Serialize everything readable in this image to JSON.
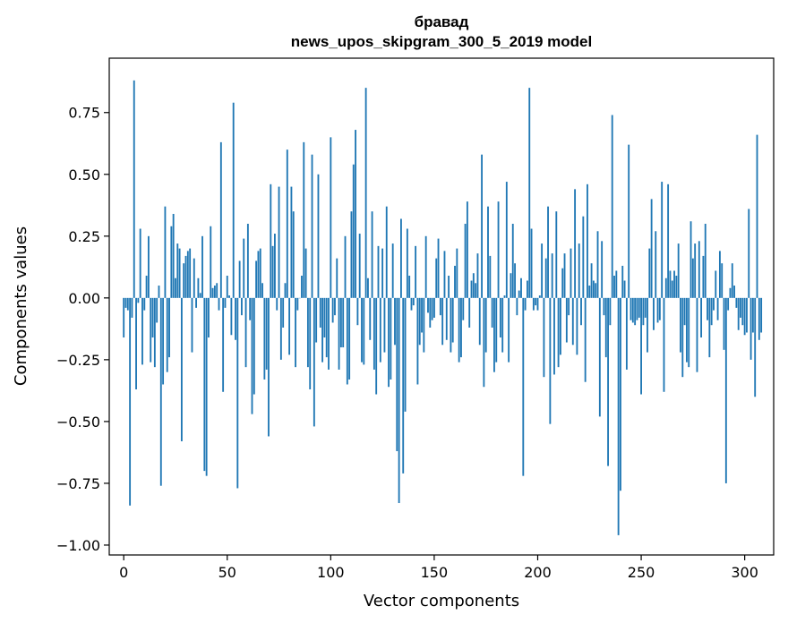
{
  "chart_data": {
    "type": "bar",
    "title": [
      "бравад",
      "news_upos_skipgram_300_5_2019 model"
    ],
    "xlabel": "Vector components",
    "ylabel": "Components values",
    "xlim": [
      -7,
      314
    ],
    "ylim": [
      -1.04,
      0.97
    ],
    "xticks": [
      0,
      50,
      100,
      150,
      200,
      250,
      300
    ],
    "xtick_labels": [
      "0",
      "50",
      "100",
      "150",
      "200",
      "250",
      "300"
    ],
    "yticks": [
      -1.0,
      -0.75,
      -0.5,
      -0.25,
      0.0,
      0.25,
      0.5,
      0.75
    ],
    "ytick_labels": [
      "−1.00",
      "−0.75",
      "−0.50",
      "−0.25",
      "0.00",
      "0.25",
      "0.50",
      "0.75"
    ],
    "bar_color": "#1f77b4",
    "grid": false,
    "x_start": 0,
    "values": [
      -0.16,
      -0.04,
      -0.05,
      -0.84,
      -0.08,
      0.88,
      -0.37,
      -0.02,
      0.28,
      -0.27,
      -0.05,
      0.09,
      0.25,
      -0.26,
      -0.16,
      -0.28,
      -0.1,
      0.05,
      -0.76,
      -0.35,
      0.37,
      -0.3,
      -0.24,
      0.29,
      0.34,
      0.08,
      0.22,
      0.2,
      -0.58,
      0.14,
      0.17,
      0.19,
      0.2,
      -0.22,
      0.16,
      -0.04,
      0.08,
      0.02,
      0.25,
      -0.7,
      -0.72,
      -0.16,
      0.29,
      0.04,
      0.05,
      0.06,
      -0.05,
      0.63,
      -0.38,
      -0.04,
      0.09,
      0.01,
      -0.15,
      0.79,
      -0.17,
      -0.77,
      0.15,
      -0.07,
      0.24,
      -0.28,
      0.3,
      -0.09,
      -0.47,
      -0.39,
      0.15,
      0.19,
      0.2,
      0.06,
      -0.33,
      -0.29,
      -0.56,
      0.46,
      0.21,
      0.26,
      -0.05,
      0.45,
      -0.25,
      -0.12,
      0.06,
      0.6,
      -0.23,
      0.45,
      0.35,
      -0.28,
      -0.05,
      0.0,
      0.09,
      0.63,
      0.2,
      -0.28,
      -0.37,
      0.58,
      -0.52,
      -0.18,
      0.5,
      -0.12,
      -0.26,
      -0.16,
      -0.24,
      -0.29,
      0.65,
      -0.1,
      -0.07,
      0.16,
      -0.29,
      -0.2,
      -0.2,
      0.25,
      -0.35,
      -0.33,
      0.35,
      0.54,
      0.68,
      -0.11,
      0.26,
      -0.26,
      -0.27,
      0.85,
      0.08,
      -0.17,
      0.35,
      -0.29,
      -0.39,
      0.21,
      -0.26,
      0.2,
      -0.22,
      0.37,
      -0.36,
      -0.33,
      0.22,
      -0.19,
      -0.62,
      -0.83,
      0.32,
      -0.71,
      -0.46,
      0.28,
      0.09,
      -0.05,
      -0.03,
      0.21,
      -0.35,
      -0.19,
      -0.14,
      -0.22,
      0.25,
      -0.06,
      -0.12,
      -0.09,
      -0.08,
      0.16,
      0.24,
      -0.07,
      -0.19,
      0.19,
      -0.17,
      0.09,
      -0.22,
      -0.18,
      0.13,
      0.2,
      -0.26,
      -0.24,
      -0.09,
      0.3,
      0.39,
      -0.12,
      0.07,
      0.1,
      0.06,
      0.18,
      -0.19,
      0.58,
      -0.36,
      -0.22,
      0.37,
      0.17,
      -0.12,
      -0.3,
      -0.26,
      0.39,
      -0.16,
      -0.22,
      0.01,
      0.47,
      -0.26,
      0.1,
      0.3,
      0.14,
      -0.07,
      0.03,
      0.08,
      -0.72,
      -0.05,
      0.07,
      0.85,
      0.28,
      -0.05,
      -0.03,
      -0.05,
      0.01,
      0.22,
      -0.32,
      0.16,
      0.37,
      -0.51,
      0.18,
      -0.31,
      0.35,
      -0.28,
      -0.23,
      0.12,
      0.18,
      -0.18,
      -0.07,
      0.2,
      -0.19,
      0.44,
      -0.23,
      0.22,
      -0.11,
      0.33,
      -0.34,
      0.46,
      0.05,
      0.14,
      0.07,
      0.06,
      0.27,
      -0.48,
      0.23,
      -0.07,
      -0.24,
      -0.68,
      -0.11,
      0.74,
      0.09,
      0.11,
      -0.96,
      -0.78,
      0.13,
      0.07,
      -0.29,
      0.62,
      -0.09,
      -0.1,
      -0.11,
      -0.09,
      -0.08,
      -0.39,
      -0.11,
      -0.08,
      -0.22,
      0.2,
      0.4,
      -0.13,
      0.27,
      -0.1,
      -0.09,
      0.47,
      -0.38,
      0.08,
      0.46,
      0.11,
      0.07,
      0.11,
      0.09,
      0.22,
      -0.22,
      -0.32,
      -0.11,
      -0.26,
      -0.28,
      0.31,
      0.16,
      0.22,
      -0.3,
      0.23,
      -0.16,
      0.17,
      0.3,
      -0.09,
      -0.24,
      -0.11,
      -0.05,
      0.11,
      -0.09,
      0.19,
      0.14,
      -0.21,
      -0.75,
      -0.05,
      0.04,
      0.14,
      0.05,
      -0.04,
      -0.13,
      -0.08,
      -0.11,
      -0.15,
      -0.14,
      0.36,
      -0.25,
      -0.14,
      -0.4,
      0.66,
      -0.17,
      -0.14
    ]
  }
}
